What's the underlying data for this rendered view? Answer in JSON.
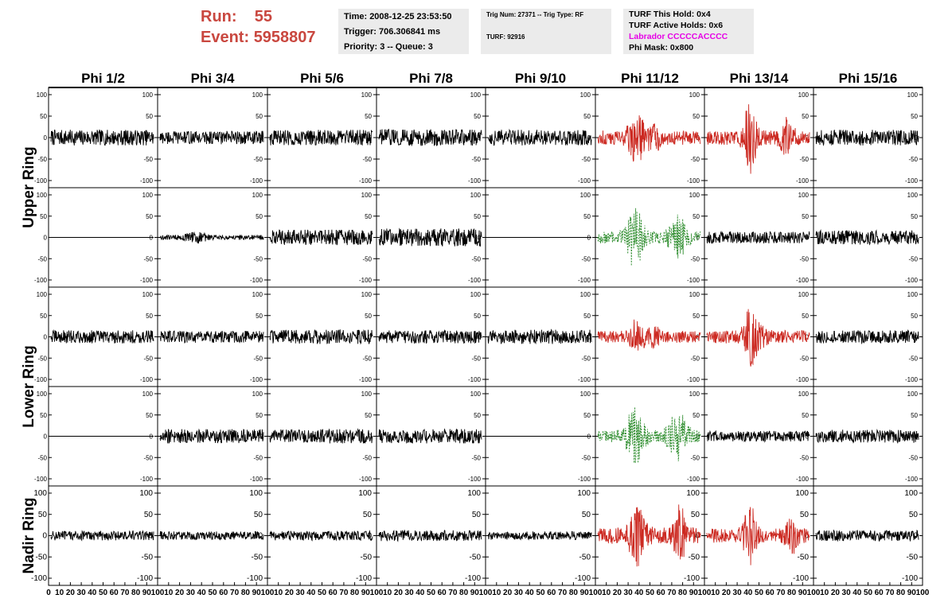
{
  "header": {
    "run_label": "Run:",
    "run_value": "55",
    "event_label": "Event:",
    "event_value": "5958807",
    "color": "#c9473f"
  },
  "info_time": {
    "time": "Time: 2008-12-25 23:53:50",
    "trigger": "Trigger: 706.306841 ms",
    "priority": "Priority: 3 -- Queue: 3"
  },
  "info_trig": {
    "trig": "Trig Num: 27371 -- Trig Type: RF",
    "turf": "TURF: 92916"
  },
  "info_turf": {
    "this_hold": "TURF This Hold: 0x4",
    "active_holds": "TURF Active Holds: 0x6",
    "labrador": "Labrador CCCCCACCCC",
    "labrador_color": "#e600e6",
    "phi_mask": "Phi Mask: 0x800"
  },
  "columns": [
    "Phi 1/2",
    "Phi 3/4",
    "Phi 5/6",
    "Phi 7/8",
    "Phi 9/10",
    "Phi 11/12",
    "Phi 13/14",
    "Phi 15/16"
  ],
  "ring_labels": [
    {
      "text": "Upper Ring",
      "rows": [
        0,
        1
      ]
    },
    {
      "text": "Lower Ring",
      "rows": [
        2,
        3
      ]
    },
    {
      "text": "Nadir Ring",
      "rows": [
        4,
        4
      ]
    }
  ],
  "y_ticks": {
    "labels": [
      "100",
      "50",
      "0",
      "-50",
      "-100"
    ],
    "values": [
      100,
      50,
      0,
      -50,
      -100
    ]
  },
  "x_ticks": {
    "labels": [
      "0",
      "10",
      "20",
      "30",
      "40",
      "50",
      "60",
      "70",
      "80",
      "90",
      "100"
    ],
    "values": [
      0,
      10,
      20,
      30,
      40,
      50,
      60,
      70,
      80,
      90,
      100
    ]
  },
  "chart_data": {
    "type": "line",
    "description_rows": [
      "Upper Ring row 1",
      "Upper Ring row 2",
      "Lower Ring row 1",
      "Lower Ring row 2",
      "Nadir Ring"
    ],
    "xlim": [
      0,
      100
    ],
    "ylim": [
      -110,
      110
    ],
    "colors": {
      "normal": "#000000",
      "triggered": "#cc2a22",
      "hpol": "#2c8c2c"
    },
    "panels": [
      [
        {
          "style": "normal",
          "amp": 13
        },
        {
          "style": "normal",
          "amp": 11
        },
        {
          "style": "normal",
          "amp": 13
        },
        {
          "style": "normal",
          "amp": 14
        },
        {
          "style": "normal",
          "amp": 13
        },
        {
          "style": "triggered",
          "amp": 12,
          "bursts": [
            [
              38,
              8,
              35
            ],
            [
              55,
              5,
              20
            ]
          ]
        },
        {
          "style": "triggered",
          "amp": 12,
          "bursts": [
            [
              42,
              6,
              50
            ],
            [
              78,
              6,
              25
            ]
          ]
        },
        {
          "style": "normal",
          "amp": 13
        }
      ],
      [
        {
          "style": "flat",
          "amp": 0
        },
        {
          "style": "normal",
          "amp": 4,
          "bursts": [
            [
              35,
              10,
              6
            ]
          ]
        },
        {
          "style": "normal",
          "amp": 13
        },
        {
          "style": "normal",
          "amp": 15
        },
        {
          "style": "flat",
          "amp": 0
        },
        {
          "style": "hpol",
          "amp": 10,
          "bursts": [
            [
              36,
              8,
              45
            ],
            [
              78,
              8,
              30
            ]
          ]
        },
        {
          "style": "normal",
          "amp": 10
        },
        {
          "style": "normal",
          "amp": 12
        }
      ],
      [
        {
          "style": "normal",
          "amp": 11
        },
        {
          "style": "normal",
          "amp": 10
        },
        {
          "style": "normal",
          "amp": 12
        },
        {
          "style": "normal",
          "amp": 11
        },
        {
          "style": "normal",
          "amp": 12
        },
        {
          "style": "triggered",
          "amp": 10,
          "bursts": [
            [
              38,
              7,
              25
            ],
            [
              55,
              5,
              12
            ]
          ]
        },
        {
          "style": "triggered",
          "amp": 11,
          "bursts": [
            [
              42,
              6,
              40
            ],
            [
              50,
              8,
              12
            ]
          ]
        },
        {
          "style": "normal",
          "amp": 11
        }
      ],
      [
        {
          "style": "flat",
          "amp": 0
        },
        {
          "style": "normal",
          "amp": 12
        },
        {
          "style": "normal",
          "amp": 12
        },
        {
          "style": "normal",
          "amp": 12
        },
        {
          "style": "flat",
          "amp": 0
        },
        {
          "style": "hpol",
          "amp": 10,
          "bursts": [
            [
              36,
              9,
              40
            ],
            [
              78,
              9,
              35
            ]
          ]
        },
        {
          "style": "normal",
          "amp": 9
        },
        {
          "style": "normal",
          "amp": 11
        }
      ],
      [
        {
          "style": "normal",
          "amp": 8
        },
        {
          "style": "normal",
          "amp": 7
        },
        {
          "style": "normal",
          "amp": 8
        },
        {
          "style": "normal",
          "amp": 9
        },
        {
          "style": "normal",
          "amp": 7
        },
        {
          "style": "triggered",
          "amp": 14,
          "bursts": [
            [
              38,
              8,
              40
            ],
            [
              80,
              5,
              45
            ]
          ]
        },
        {
          "style": "triggered",
          "amp": 12,
          "bursts": [
            [
              42,
              6,
              50
            ],
            [
              82,
              6,
              25
            ]
          ]
        },
        {
          "style": "normal",
          "amp": 9
        }
      ]
    ]
  }
}
